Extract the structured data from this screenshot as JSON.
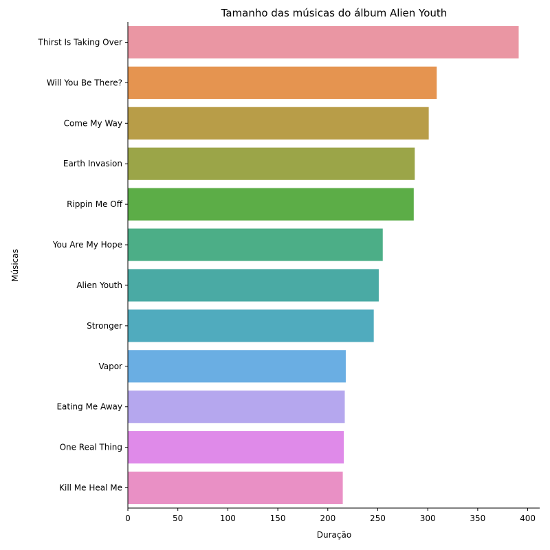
{
  "chart_data": {
    "type": "bar",
    "orientation": "horizontal",
    "title": "Tamanho das músicas do álbum Alien Youth",
    "xlabel": "Duração",
    "ylabel": "Músicas",
    "xlim": [
      0,
      412
    ],
    "xticks": [
      0,
      50,
      100,
      150,
      200,
      250,
      300,
      350,
      400
    ],
    "grid": false,
    "legend": "none",
    "categories": [
      "Thirst Is Taking Over",
      "Will You Be There?",
      "Come My Way",
      "Earth Invasion",
      "Rippin Me Off",
      "You Are My Hope",
      "Alien Youth",
      "Stronger",
      "Vapor",
      "Eating Me Away",
      "One Real Thing",
      "Kill Me Heal Me"
    ],
    "values": [
      391,
      309,
      301,
      287,
      286,
      255,
      251,
      246,
      218,
      217,
      216,
      215
    ],
    "colors": [
      "#ea96a3",
      "#e59450",
      "#b89d48",
      "#9ba548",
      "#5cad47",
      "#4cae87",
      "#4aaaa4",
      "#50abbe",
      "#6aaee3",
      "#b5a7ee",
      "#df8ae9",
      "#e990c5"
    ]
  }
}
